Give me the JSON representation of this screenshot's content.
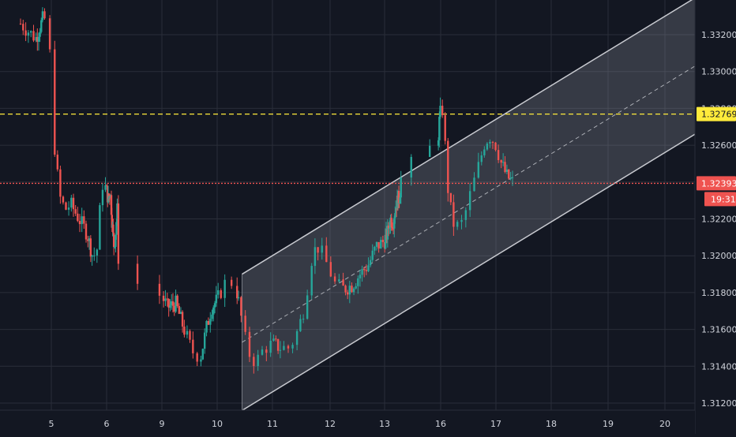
{
  "chart_data": {
    "type": "candlestick",
    "instrument_hint": "",
    "colors": {
      "background": "#131722",
      "grid": "#2a2e39",
      "up": "#26a69a",
      "down": "#ef5350",
      "channel_fill": "#9598a1",
      "channel_line": "#c8cad0",
      "resistance_line": "#ffeb3b",
      "price_line": "#ef5350",
      "axis_text": "#d1d4dc"
    },
    "y_axis": {
      "min": 1.3118,
      "max": 1.334,
      "ticks": [
        "1.31200",
        "1.31400",
        "1.31600",
        "1.31800",
        "1.32000",
        "1.32200",
        "1.32400",
        "1.32600",
        "1.32800",
        "1.33000",
        "1.33200"
      ]
    },
    "x_axis": {
      "ticks": [
        "5",
        "6",
        "9",
        "10",
        "11",
        "12",
        "13",
        "16",
        "17",
        "18",
        "19",
        "20"
      ],
      "tick_index": [
        5,
        6,
        9,
        10,
        11,
        12,
        13,
        16,
        17,
        18,
        19,
        20
      ]
    },
    "horizontal_lines": [
      {
        "name": "resistance",
        "price": 1.32769,
        "label": "1.32769",
        "style": "dashed",
        "color": "#ffeb3b",
        "label_bg": "#ffeb3b",
        "label_color": "#131722"
      },
      {
        "name": "last-price",
        "price": 1.32393,
        "label": "1.32393",
        "style": "dotted",
        "color": "#ef5350",
        "label_bg": "#ef5350",
        "label_color": "#ffffff",
        "countdown": "19:31"
      }
    ],
    "channel": {
      "start": {
        "day": 10.45,
        "price": 1.319
      },
      "end": {
        "day": 21.2,
        "price": 1.3352
      },
      "lower_offset": -0.0074,
      "mid_offset": -0.0037,
      "box_from_day": 10.45
    },
    "price_path": [
      [
        4.0,
        1.3326
      ],
      [
        4.3,
        1.3318
      ],
      [
        4.6,
        1.333
      ],
      [
        4.65,
        1.3322
      ],
      [
        4.7,
        1.3262
      ],
      [
        4.8,
        1.3232
      ],
      [
        4.9,
        1.3225
      ],
      [
        5.0,
        1.3228
      ],
      [
        5.2,
        1.322
      ],
      [
        5.4,
        1.3212
      ],
      [
        5.6,
        1.3199
      ],
      [
        5.7,
        1.3205
      ],
      [
        5.75,
        1.324
      ],
      [
        5.85,
        1.3236
      ],
      [
        6.0,
        1.323
      ],
      [
        6.2,
        1.3236
      ],
      [
        6.35,
        1.3218
      ],
      [
        6.5,
        1.3205
      ],
      [
        6.6,
        1.3214
      ],
      [
        6.72,
        1.3228
      ],
      [
        6.75,
        1.319
      ],
      [
        6.85,
        1.3178
      ],
      [
        7.0,
        1.3172
      ],
      [
        7.3,
        1.3174
      ],
      [
        7.55,
        1.316
      ],
      [
        7.7,
        1.3148
      ],
      [
        7.8,
        1.3145
      ],
      [
        7.95,
        1.316
      ],
      [
        8.1,
        1.3172
      ],
      [
        8.3,
        1.3176
      ],
      [
        8.4,
        1.3183
      ],
      [
        8.45,
        1.3188
      ],
      [
        8.5,
        1.3182
      ],
      [
        8.6,
        1.3172
      ],
      [
        8.7,
        1.3148
      ],
      [
        8.8,
        1.3142
      ],
      [
        8.9,
        1.315
      ],
      [
        9.0,
        1.3152
      ],
      [
        9.2,
        1.315
      ],
      [
        9.3,
        1.315
      ],
      [
        9.4,
        1.316
      ],
      [
        9.5,
        1.3172
      ],
      [
        9.6,
        1.3202
      ],
      [
        9.7,
        1.3205
      ],
      [
        9.8,
        1.3195
      ],
      [
        9.9,
        1.3184
      ],
      [
        10.0,
        1.3182
      ],
      [
        10.2,
        1.3184
      ],
      [
        10.4,
        1.319
      ],
      [
        10.6,
        1.3195
      ],
      [
        10.8,
        1.3205
      ],
      [
        11.0,
        1.3208
      ],
      [
        11.2,
        1.3212
      ],
      [
        11.35,
        1.322
      ],
      [
        11.5,
        1.3218
      ],
      [
        11.6,
        1.3225
      ],
      [
        11.8,
        1.323
      ],
      [
        12.0,
        1.3232
      ],
      [
        12.1,
        1.3245
      ],
      [
        12.2,
        1.3262
      ],
      [
        12.3,
        1.3276
      ],
      [
        12.4,
        1.328
      ],
      [
        12.45,
        1.3248
      ],
      [
        12.5,
        1.323
      ],
      [
        12.6,
        1.3215
      ],
      [
        12.7,
        1.3218
      ],
      [
        12.8,
        1.3235
      ],
      [
        12.9,
        1.325
      ],
      [
        13.0,
        1.3262
      ],
      [
        13.1,
        1.3265
      ],
      [
        13.2,
        1.326
      ],
      [
        13.3,
        1.325
      ],
      [
        13.45,
        1.3243
      ],
      [
        13.6,
        1.324
      ]
    ],
    "time_map": [
      [
        4.0,
        4.4
      ],
      [
        4.3,
        4.7
      ],
      [
        4.6,
        4.85
      ],
      [
        4.65,
        4.95
      ],
      [
        4.7,
        5.05
      ],
      [
        4.8,
        5.15
      ],
      [
        4.9,
        5.25
      ],
      [
        5.0,
        5.35
      ],
      [
        5.2,
        5.5
      ],
      [
        5.4,
        5.65
      ],
      [
        5.6,
        5.75
      ],
      [
        5.7,
        5.85
      ],
      [
        5.75,
        5.9
      ],
      [
        5.85,
        6.0
      ],
      [
        6.0,
        6.1
      ],
      [
        6.2,
        6.2
      ],
      [
        6.35,
        6.3
      ],
      [
        6.5,
        6.4
      ],
      [
        6.6,
        6.5
      ],
      [
        6.72,
        6.6
      ],
      [
        6.75,
        6.65
      ],
      [
        6.85,
        9.0
      ],
      [
        7.0,
        9.1
      ],
      [
        7.3,
        9.25
      ],
      [
        7.55,
        9.4
      ],
      [
        7.7,
        9.55
      ],
      [
        7.8,
        9.7
      ],
      [
        7.95,
        9.8
      ],
      [
        8.1,
        9.9
      ],
      [
        8.3,
        10.0
      ],
      [
        8.4,
        10.1
      ],
      [
        8.45,
        10.2
      ],
      [
        8.5,
        10.35
      ],
      [
        8.6,
        10.4
      ],
      [
        8.7,
        10.55
      ],
      [
        8.8,
        10.7
      ],
      [
        8.9,
        10.85
      ],
      [
        9.0,
        11.0
      ],
      [
        9.2,
        11.15
      ],
      [
        9.3,
        11.3
      ],
      [
        9.4,
        11.45
      ],
      [
        9.5,
        11.55
      ],
      [
        9.6,
        11.7
      ],
      [
        9.7,
        11.8
      ],
      [
        9.8,
        11.95
      ],
      [
        9.9,
        12.1
      ],
      [
        10.0,
        12.25
      ],
      [
        10.2,
        12.4
      ],
      [
        10.4,
        12.55
      ],
      [
        10.6,
        12.7
      ],
      [
        10.8,
        12.85
      ],
      [
        11.0,
        13.0
      ],
      [
        11.2,
        13.15
      ],
      [
        11.35,
        13.3
      ],
      [
        11.5,
        13.45
      ],
      [
        11.6,
        13.55
      ],
      [
        11.8,
        13.7
      ],
      [
        12.0,
        13.8
      ],
      [
        12.1,
        13.9
      ],
      [
        12.2,
        15.85
      ],
      [
        12.3,
        15.95
      ],
      [
        12.4,
        16.05
      ],
      [
        12.45,
        16.1
      ],
      [
        12.5,
        16.15
      ],
      [
        12.6,
        16.25
      ],
      [
        12.7,
        16.4
      ],
      [
        12.8,
        16.55
      ],
      [
        12.9,
        16.7
      ],
      [
        13.0,
        16.8
      ],
      [
        13.1,
        16.9
      ],
      [
        13.2,
        17.0
      ],
      [
        13.3,
        17.1
      ],
      [
        13.45,
        17.2
      ],
      [
        13.6,
        17.3
      ]
    ]
  }
}
